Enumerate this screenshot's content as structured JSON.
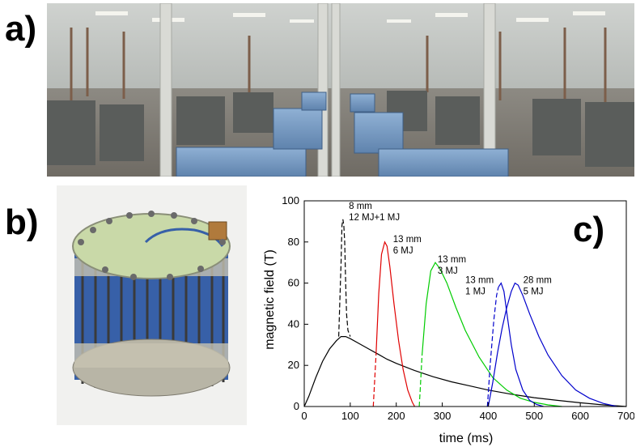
{
  "panels": {
    "a_label": "a)",
    "b_label": "b)",
    "c_label": "c)"
  },
  "chart_data": {
    "type": "line",
    "xlabel": "time (ms)",
    "ylabel": "magnetic field (T)",
    "xlim": [
      0,
      700
    ],
    "ylim": [
      0,
      100
    ],
    "xticks": [
      0,
      100,
      200,
      300,
      400,
      500,
      600,
      700
    ],
    "yticks": [
      0,
      20,
      40,
      60,
      80,
      100
    ],
    "grid": false,
    "series": [
      {
        "color": "#000000",
        "dash": false,
        "x": [
          0,
          10,
          25,
          40,
          55,
          70,
          80,
          90,
          100,
          120,
          140,
          160,
          180,
          200,
          240,
          280,
          320,
          360,
          400,
          450,
          500,
          550,
          600,
          650,
          700
        ],
        "y": [
          0,
          5,
          14,
          22,
          28,
          32,
          34,
          34,
          33,
          30.5,
          28,
          25.5,
          23,
          21,
          17.5,
          14.5,
          12,
          10,
          8,
          6,
          4.3,
          3,
          1.8,
          0.8,
          0
        ]
      },
      {
        "color": "#000000",
        "dash": true,
        "x": [
          75,
          80,
          82,
          84,
          86,
          88,
          90,
          92,
          95,
          100
        ],
        "y": [
          34,
          70,
          88,
          91,
          88,
          80,
          60,
          45,
          37,
          34
        ]
      },
      {
        "color": "#e00000",
        "dash": true,
        "x": [
          150,
          152,
          156
        ],
        "y": [
          0,
          8,
          25
        ]
      },
      {
        "color": "#e00000",
        "dash": false,
        "x": [
          156,
          162,
          168,
          175,
          180,
          186,
          195,
          205,
          215,
          225,
          235,
          240
        ],
        "y": [
          25,
          55,
          74,
          80,
          78,
          68,
          50,
          32,
          18,
          8,
          2,
          0
        ]
      },
      {
        "color": "#00cc00",
        "dash": true,
        "x": [
          250,
          252,
          256
        ],
        "y": [
          0,
          8,
          25
        ]
      },
      {
        "color": "#00cc00",
        "dash": false,
        "x": [
          256,
          265,
          275,
          285,
          295,
          310,
          330,
          350,
          380,
          410,
          440,
          470,
          500,
          530,
          560
        ],
        "y": [
          25,
          50,
          66,
          70,
          67,
          60,
          48,
          37,
          24,
          14,
          8,
          4,
          2,
          0.8,
          0
        ]
      },
      {
        "color": "#0000cc",
        "dash": true,
        "x": [
          398,
          400,
          404,
          412,
          418,
          422
        ],
        "y": [
          0,
          6,
          20,
          42,
          54,
          58
        ]
      },
      {
        "color": "#0000cc",
        "dash": false,
        "x": [
          422,
          428,
          434,
          440,
          450,
          460,
          475,
          490,
          505,
          520
        ],
        "y": [
          58,
          60,
          56,
          46,
          30,
          18,
          8,
          3,
          1,
          0
        ]
      },
      {
        "color": "#0000cc",
        "dash": false,
        "x": [
          400,
          410,
          420,
          430,
          440,
          450,
          458,
          465,
          475,
          490,
          510,
          530,
          560,
          590,
          620,
          650,
          680
        ],
        "y": [
          0,
          12,
          26,
          38,
          48,
          56,
          60,
          59,
          54,
          45,
          34,
          25,
          15,
          8,
          4,
          1.5,
          0
        ]
      }
    ],
    "annotations": [
      {
        "lines": [
          "8 mm",
          "12 MJ+1 MJ"
        ],
        "x": 97,
        "y": 96
      },
      {
        "lines": [
          "13 mm",
          "6 MJ"
        ],
        "x": 193,
        "y": 80
      },
      {
        "lines": [
          "13 mm",
          "3 MJ"
        ],
        "x": 290,
        "y": 70
      },
      {
        "lines": [
          "13 mm",
          "1 MJ"
        ],
        "x": 350,
        "y": 60
      },
      {
        "lines": [
          "28 mm",
          "5 MJ"
        ],
        "x": 476,
        "y": 60
      }
    ]
  }
}
